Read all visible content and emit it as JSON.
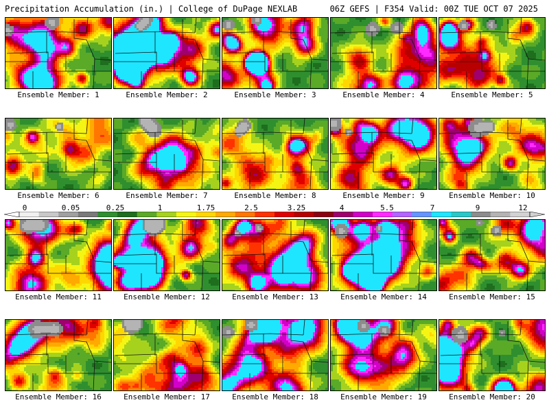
{
  "header": {
    "title": "Precipitation Accumulation (in.) | College of DuPage NEXLAB",
    "run_info": "06Z GEFS | F354 Valid: 00Z TUE OCT 07 2025"
  },
  "panels": [
    {
      "label": "Ensemble Member: 1",
      "seed": 11,
      "wet": 0.55
    },
    {
      "label": "Ensemble Member: 2",
      "seed": 23,
      "wet": 0.85
    },
    {
      "label": "Ensemble Member: 3",
      "seed": 37,
      "wet": 0.6
    },
    {
      "label": "Ensemble Member: 4",
      "seed": 41,
      "wet": 0.5
    },
    {
      "label": "Ensemble Member: 5",
      "seed": 53,
      "wet": 0.6
    },
    {
      "label": "Ensemble Member: 6",
      "seed": 67,
      "wet": 0.45
    },
    {
      "label": "Ensemble Member: 7",
      "seed": 71,
      "wet": 0.35
    },
    {
      "label": "Ensemble Member: 8",
      "seed": 83,
      "wet": 0.35
    },
    {
      "label": "Ensemble Member: 9",
      "seed": 97,
      "wet": 0.6
    },
    {
      "label": "Ensemble Member: 10",
      "seed": 101,
      "wet": 0.5
    },
    {
      "label": "Ensemble Member: 11",
      "seed": 113,
      "wet": 0.6
    },
    {
      "label": "Ensemble Member: 12",
      "seed": 127,
      "wet": 0.6
    },
    {
      "label": "Ensemble Member: 13",
      "seed": 131,
      "wet": 0.55
    },
    {
      "label": "Ensemble Member: 14",
      "seed": 149,
      "wet": 0.7
    },
    {
      "label": "Ensemble Member: 15",
      "seed": 157,
      "wet": 0.6
    },
    {
      "label": "Ensemble Member: 16",
      "seed": 163,
      "wet": 0.4
    },
    {
      "label": "Ensemble Member: 17",
      "seed": 173,
      "wet": 0.4
    },
    {
      "label": "Ensemble Member: 18",
      "seed": 181,
      "wet": 0.55
    },
    {
      "label": "Ensemble Member: 19",
      "seed": 191,
      "wet": 0.45
    },
    {
      "label": "Ensemble Member: 20",
      "seed": 199,
      "wet": 0.8
    }
  ],
  "legend": {
    "ticks": [
      "0",
      "0.05",
      "0.25",
      "1",
      "1.75",
      "2.5",
      "3.25",
      "4",
      "5.5",
      "7",
      "9",
      "12"
    ],
    "colors": [
      "#f0f0f0",
      "#c8c8c8",
      "#a0a0a0",
      "#7a7a7a",
      "#2f8f2f",
      "#1e6e1e",
      "#5aaa28",
      "#a6d21e",
      "#f5f514",
      "#ffd700",
      "#ffaa00",
      "#ff7700",
      "#ff3300",
      "#e00000",
      "#b80000",
      "#8c0014",
      "#a0006e",
      "#d200c8",
      "#ff2aff",
      "#b464ff",
      "#6495ff",
      "#1ee6ff",
      "#28c8c8",
      "#8c8c8c",
      "#b4b4b4",
      "#d2d2d2"
    ]
  },
  "color_scale": [
    "#8c8c8c",
    "#b4b4b4",
    "#1e6e1e",
    "#2f8f2f",
    "#5aaa28",
    "#a6d21e",
    "#f5f514",
    "#ffd700",
    "#ffaa00",
    "#ff7700",
    "#ff3300",
    "#e00000",
    "#b80000",
    "#a0006e",
    "#d200c8",
    "#ff2aff",
    "#1ee6ff"
  ]
}
